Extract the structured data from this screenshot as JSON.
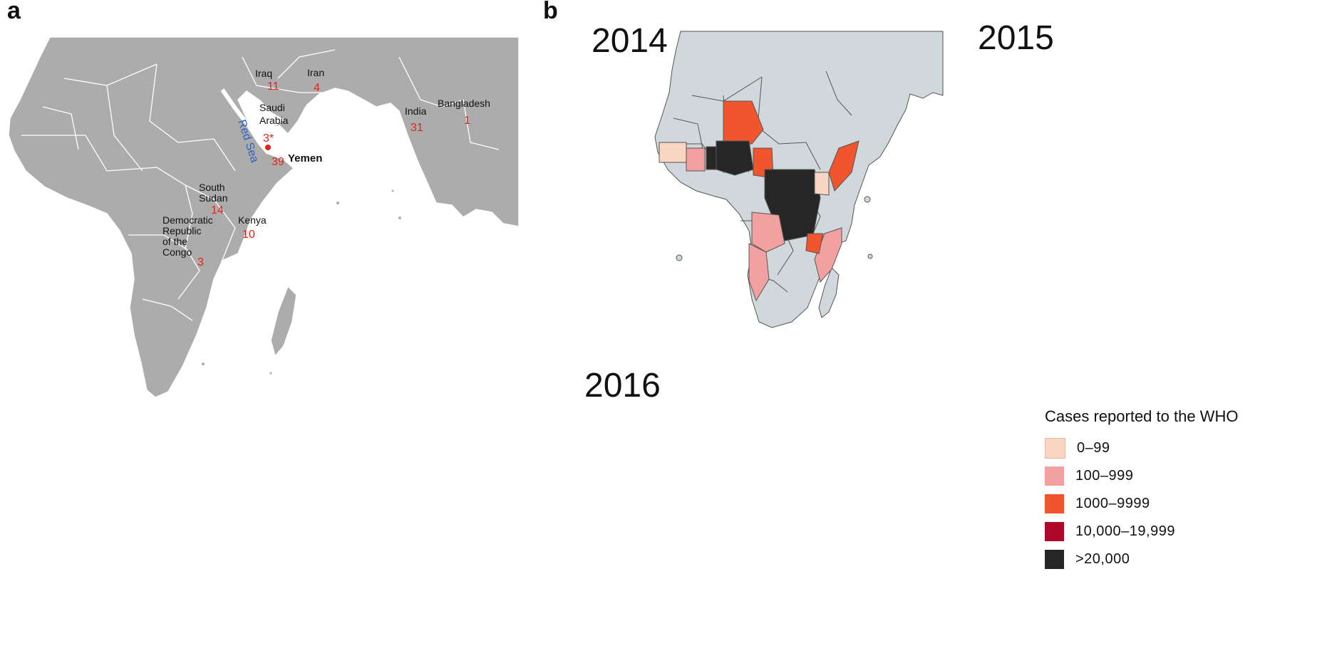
{
  "panel_a": {
    "letter": "a",
    "labels": [
      {
        "name": "Iraq",
        "count": "11"
      },
      {
        "name": "Iran",
        "count": "4"
      },
      {
        "name": "Saudi Arabia",
        "line1": "Saudi",
        "line2": "Arabia",
        "count": "3*"
      },
      {
        "name": "Yemen",
        "count": "39"
      },
      {
        "name": "India",
        "count": "31"
      },
      {
        "name": "Bangladesh",
        "count": "1"
      },
      {
        "name": "South Sudan",
        "line1": "South",
        "line2": "Sudan",
        "count": "14"
      },
      {
        "name": "Kenya",
        "count": "10"
      },
      {
        "name": "Democratic Republic of the Congo",
        "line1": "Democratic",
        "line2": "Republic",
        "line3": "of the",
        "line4": "Congo",
        "count": "3"
      }
    ],
    "sea_label": "Red Sea"
  },
  "panel_b": {
    "letter": "b",
    "maps": [
      {
        "year": "2014"
      },
      {
        "year": "2015"
      },
      {
        "year": "2016"
      }
    ]
  },
  "legend": {
    "title": "Cases reported to the WHO",
    "items": [
      {
        "label": "0–99",
        "color": "#f9d5c4"
      },
      {
        "label": "100–999",
        "color": "#f2a0a0"
      },
      {
        "label": "1000–9999",
        "color": "#f0552e"
      },
      {
        "label": "10,000–19,999",
        "color": "#b0082c"
      },
      {
        "label": ">20,000",
        "color": "#262626"
      }
    ]
  },
  "colors": {
    "panel_a_land": "#acacac",
    "panel_a_count": "#e2231a",
    "panel_a_sea_label": "#2c5fc9",
    "panel_b_land": "#d0d8dc",
    "border": "#555555"
  }
}
